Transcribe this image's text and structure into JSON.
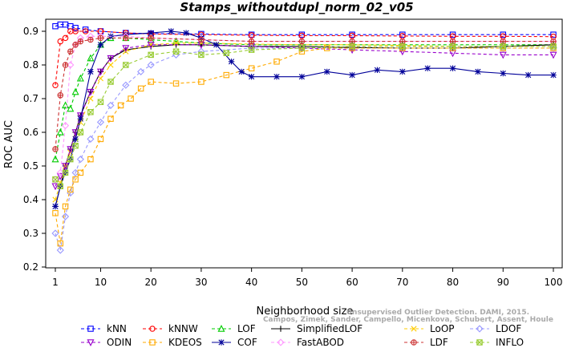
{
  "chart_data": {
    "type": "line",
    "title": "Stamps_withoutdupl_norm_02_v05",
    "xlabel": "Neighborhood size",
    "ylabel": "ROC AUC",
    "xlim": [
      1,
      100
    ],
    "ylim": [
      0.2,
      0.95
    ],
    "x_ticks": [
      1,
      10,
      20,
      30,
      40,
      50,
      60,
      70,
      80,
      90,
      100
    ],
    "y_ticks": [
      0.2,
      0.3,
      0.4,
      0.5,
      0.6,
      0.7,
      0.8,
      0.9
    ],
    "grid": false,
    "legend_position": "bottom",
    "watermark": [
      "Campos, Zimek, Sander, Campello, Micenkova, Schubert, Assent, Houle",
      "Unsupervised Outlier Detection. DAMI, 2015."
    ],
    "series": [
      {
        "name": "kNN",
        "color": "#0000ff",
        "marker": "square",
        "dash": "4,3",
        "points": [
          [
            1,
            0.915
          ],
          [
            2,
            0.92
          ],
          [
            3,
            0.92
          ],
          [
            4,
            0.915
          ],
          [
            5,
            0.91
          ],
          [
            7,
            0.905
          ],
          [
            10,
            0.9
          ],
          [
            15,
            0.895
          ],
          [
            20,
            0.893
          ],
          [
            30,
            0.892
          ],
          [
            40,
            0.89
          ],
          [
            50,
            0.89
          ],
          [
            60,
            0.89
          ],
          [
            70,
            0.89
          ],
          [
            80,
            0.89
          ],
          [
            90,
            0.89
          ],
          [
            100,
            0.89
          ]
        ]
      },
      {
        "name": "kNNW",
        "color": "#ff0000",
        "marker": "circle",
        "dash": "4,3",
        "points": [
          [
            1,
            0.74
          ],
          [
            2,
            0.87
          ],
          [
            3,
            0.88
          ],
          [
            4,
            0.9
          ],
          [
            5,
            0.9
          ],
          [
            7,
            0.9
          ],
          [
            10,
            0.9
          ],
          [
            15,
            0.895
          ],
          [
            20,
            0.892
          ],
          [
            30,
            0.89
          ],
          [
            40,
            0.888
          ],
          [
            50,
            0.887
          ],
          [
            60,
            0.887
          ],
          [
            70,
            0.886
          ],
          [
            80,
            0.885
          ],
          [
            90,
            0.885
          ],
          [
            100,
            0.884
          ]
        ]
      },
      {
        "name": "LOF",
        "color": "#00cc00",
        "marker": "triangle",
        "dash": "4,3",
        "points": [
          [
            1,
            0.52
          ],
          [
            2,
            0.6
          ],
          [
            3,
            0.68
          ],
          [
            4,
            0.67
          ],
          [
            5,
            0.72
          ],
          [
            6,
            0.76
          ],
          [
            8,
            0.82
          ],
          [
            10,
            0.86
          ],
          [
            12,
            0.88
          ],
          [
            15,
            0.88
          ],
          [
            20,
            0.875
          ],
          [
            25,
            0.87
          ],
          [
            30,
            0.865
          ],
          [
            40,
            0.86
          ],
          [
            50,
            0.86
          ],
          [
            60,
            0.86
          ],
          [
            70,
            0.86
          ],
          [
            80,
            0.86
          ],
          [
            90,
            0.86
          ],
          [
            100,
            0.86
          ]
        ]
      },
      {
        "name": "SimplifiedLOF",
        "color": "#000000",
        "marker": "plus",
        "dash": "",
        "points": [
          [
            1,
            0.38
          ],
          [
            2,
            0.44
          ],
          [
            3,
            0.5
          ],
          [
            4,
            0.55
          ],
          [
            5,
            0.6
          ],
          [
            6,
            0.65
          ],
          [
            8,
            0.72
          ],
          [
            10,
            0.78
          ],
          [
            12,
            0.82
          ],
          [
            15,
            0.845
          ],
          [
            20,
            0.855
          ],
          [
            25,
            0.86
          ],
          [
            30,
            0.86
          ],
          [
            40,
            0.855
          ],
          [
            50,
            0.855
          ],
          [
            60,
            0.852
          ],
          [
            70,
            0.85
          ],
          [
            80,
            0.85
          ],
          [
            90,
            0.855
          ],
          [
            100,
            0.86
          ]
        ]
      },
      {
        "name": "LoOP",
        "color": "#ffcc00",
        "marker": "x",
        "dash": "4,3",
        "points": [
          [
            1,
            0.4
          ],
          [
            2,
            0.45
          ],
          [
            3,
            0.5
          ],
          [
            4,
            0.54
          ],
          [
            5,
            0.58
          ],
          [
            6,
            0.63
          ],
          [
            8,
            0.7
          ],
          [
            10,
            0.76
          ],
          [
            12,
            0.8
          ],
          [
            15,
            0.84
          ],
          [
            20,
            0.86
          ],
          [
            25,
            0.865
          ],
          [
            30,
            0.865
          ],
          [
            40,
            0.862
          ],
          [
            50,
            0.86
          ],
          [
            60,
            0.86
          ],
          [
            70,
            0.858
          ],
          [
            80,
            0.855
          ],
          [
            90,
            0.855
          ],
          [
            100,
            0.855
          ]
        ]
      },
      {
        "name": "LDOF",
        "color": "#9999ff",
        "marker": "diamond",
        "dash": "4,3",
        "points": [
          [
            1,
            0.3
          ],
          [
            2,
            0.25
          ],
          [
            3,
            0.35
          ],
          [
            4,
            0.42
          ],
          [
            5,
            0.48
          ],
          [
            6,
            0.52
          ],
          [
            8,
            0.58
          ],
          [
            10,
            0.63
          ],
          [
            12,
            0.68
          ],
          [
            15,
            0.74
          ],
          [
            18,
            0.78
          ],
          [
            20,
            0.8
          ],
          [
            25,
            0.83
          ],
          [
            30,
            0.84
          ],
          [
            40,
            0.85
          ],
          [
            50,
            0.85
          ],
          [
            60,
            0.85
          ],
          [
            70,
            0.85
          ],
          [
            80,
            0.85
          ],
          [
            90,
            0.85
          ],
          [
            100,
            0.85
          ]
        ]
      },
      {
        "name": "ODIN",
        "color": "#9900cc",
        "marker": "triangle-down",
        "dash": "4,3",
        "points": [
          [
            1,
            0.44
          ],
          [
            2,
            0.47
          ],
          [
            3,
            0.5
          ],
          [
            4,
            0.55
          ],
          [
            5,
            0.6
          ],
          [
            6,
            0.65
          ],
          [
            8,
            0.72
          ],
          [
            10,
            0.78
          ],
          [
            12,
            0.82
          ],
          [
            15,
            0.85
          ],
          [
            20,
            0.86
          ],
          [
            30,
            0.86
          ],
          [
            40,
            0.855
          ],
          [
            50,
            0.85
          ],
          [
            60,
            0.845
          ],
          [
            70,
            0.84
          ],
          [
            80,
            0.835
          ],
          [
            90,
            0.83
          ],
          [
            100,
            0.83
          ]
        ]
      },
      {
        "name": "KDEOS",
        "color": "#ffaa00",
        "marker": "square",
        "dash": "4,3",
        "points": [
          [
            1,
            0.36
          ],
          [
            2,
            0.27
          ],
          [
            3,
            0.38
          ],
          [
            4,
            0.43
          ],
          [
            5,
            0.46
          ],
          [
            6,
            0.48
          ],
          [
            8,
            0.52
          ],
          [
            10,
            0.58
          ],
          [
            12,
            0.64
          ],
          [
            14,
            0.68
          ],
          [
            16,
            0.7
          ],
          [
            18,
            0.73
          ],
          [
            20,
            0.75
          ],
          [
            25,
            0.745
          ],
          [
            30,
            0.75
          ],
          [
            35,
            0.77
          ],
          [
            40,
            0.79
          ],
          [
            45,
            0.81
          ],
          [
            50,
            0.84
          ],
          [
            55,
            0.85
          ],
          [
            60,
            0.85
          ],
          [
            70,
            0.85
          ],
          [
            80,
            0.85
          ],
          [
            90,
            0.85
          ],
          [
            100,
            0.85
          ]
        ]
      },
      {
        "name": "COF",
        "color": "#000099",
        "marker": "star",
        "dash": "",
        "points": [
          [
            1,
            0.38
          ],
          [
            2,
            0.44
          ],
          [
            3,
            0.48
          ],
          [
            4,
            0.52
          ],
          [
            5,
            0.58
          ],
          [
            6,
            0.64
          ],
          [
            8,
            0.78
          ],
          [
            10,
            0.86
          ],
          [
            12,
            0.885
          ],
          [
            15,
            0.89
          ],
          [
            20,
            0.895
          ],
          [
            24,
            0.9
          ],
          [
            27,
            0.895
          ],
          [
            30,
            0.88
          ],
          [
            33,
            0.86
          ],
          [
            36,
            0.81
          ],
          [
            38,
            0.78
          ],
          [
            40,
            0.765
          ],
          [
            45,
            0.765
          ],
          [
            50,
            0.765
          ],
          [
            55,
            0.78
          ],
          [
            60,
            0.77
          ],
          [
            65,
            0.785
          ],
          [
            70,
            0.78
          ],
          [
            75,
            0.79
          ],
          [
            80,
            0.79
          ],
          [
            85,
            0.78
          ],
          [
            90,
            0.775
          ],
          [
            95,
            0.77
          ],
          [
            100,
            0.77
          ]
        ]
      },
      {
        "name": "FastABOD",
        "color": "#ff99ff",
        "marker": "diamond",
        "dash": "4,3",
        "points": [
          [
            1,
            0.46
          ],
          [
            2,
            0.48
          ],
          [
            3,
            0.62
          ],
          [
            4,
            0.8
          ],
          [
            5,
            0.86
          ],
          [
            6,
            0.88
          ],
          [
            8,
            0.885
          ],
          [
            10,
            0.885
          ],
          [
            15,
            0.885
          ],
          [
            20,
            0.88
          ],
          [
            30,
            0.875
          ],
          [
            40,
            0.87
          ],
          [
            50,
            0.87
          ],
          [
            60,
            0.87
          ],
          [
            70,
            0.87
          ],
          [
            80,
            0.87
          ],
          [
            90,
            0.87
          ],
          [
            100,
            0.87
          ]
        ]
      },
      {
        "name": "LDF",
        "color": "#cc3333",
        "marker": "circle-plus",
        "dash": "4,3",
        "points": [
          [
            1,
            0.55
          ],
          [
            2,
            0.71
          ],
          [
            3,
            0.8
          ],
          [
            4,
            0.84
          ],
          [
            5,
            0.86
          ],
          [
            6,
            0.87
          ],
          [
            8,
            0.875
          ],
          [
            10,
            0.88
          ],
          [
            15,
            0.88
          ],
          [
            20,
            0.88
          ],
          [
            30,
            0.875
          ],
          [
            40,
            0.87
          ],
          [
            50,
            0.87
          ],
          [
            60,
            0.87
          ],
          [
            70,
            0.87
          ],
          [
            80,
            0.87
          ],
          [
            90,
            0.87
          ],
          [
            100,
            0.87
          ]
        ]
      },
      {
        "name": "INFLO",
        "color": "#99cc33",
        "marker": "square-x",
        "dash": "4,3",
        "points": [
          [
            1,
            0.46
          ],
          [
            2,
            0.44
          ],
          [
            3,
            0.48
          ],
          [
            4,
            0.52
          ],
          [
            5,
            0.56
          ],
          [
            6,
            0.6
          ],
          [
            8,
            0.66
          ],
          [
            10,
            0.69
          ],
          [
            12,
            0.75
          ],
          [
            15,
            0.8
          ],
          [
            20,
            0.83
          ],
          [
            25,
            0.84
          ],
          [
            30,
            0.83
          ],
          [
            35,
            0.835
          ],
          [
            40,
            0.845
          ],
          [
            50,
            0.85
          ],
          [
            60,
            0.855
          ],
          [
            70,
            0.855
          ],
          [
            80,
            0.855
          ],
          [
            90,
            0.855
          ],
          [
            100,
            0.855
          ]
        ]
      }
    ]
  }
}
